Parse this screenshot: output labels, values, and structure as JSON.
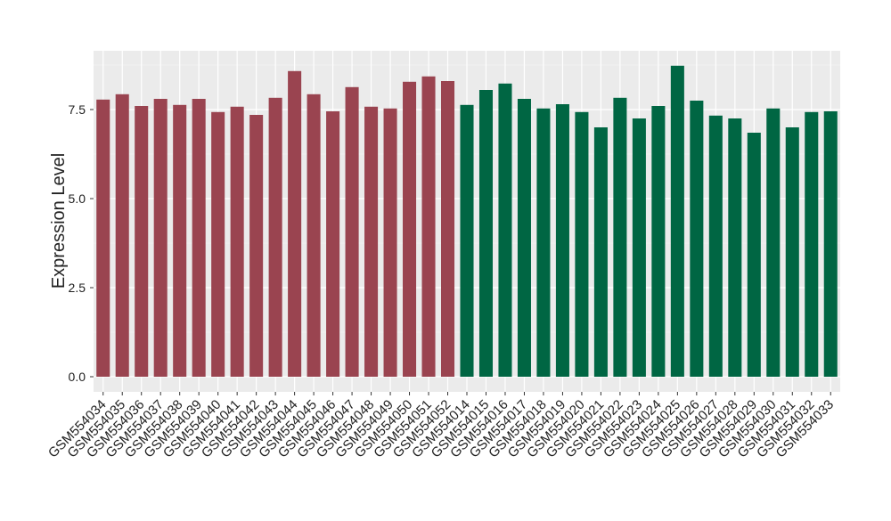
{
  "chart_data": {
    "type": "bar",
    "y_label": "Expression Level",
    "categories": [
      "GSM554034",
      "GSM554035",
      "GSM554036",
      "GSM554037",
      "GSM554038",
      "GSM554039",
      "GSM554040",
      "GSM554041",
      "GSM554042",
      "GSM554043",
      "GSM554044",
      "GSM554045",
      "GSM554046",
      "GSM554047",
      "GSM554048",
      "GSM554049",
      "GSM554050",
      "GSM554051",
      "GSM554052",
      "GSM554014",
      "GSM554015",
      "GSM554016",
      "GSM554017",
      "GSM554018",
      "GSM554019",
      "GSM554020",
      "GSM554021",
      "GSM554022",
      "GSM554023",
      "GSM554024",
      "GSM554025",
      "GSM554026",
      "GSM554027",
      "GSM554028",
      "GSM554029",
      "GSM554030",
      "GSM554031",
      "GSM554032",
      "GSM554033"
    ],
    "values": [
      7.78,
      7.93,
      7.6,
      7.8,
      7.63,
      7.8,
      7.43,
      7.58,
      7.35,
      7.83,
      8.58,
      7.93,
      7.45,
      8.13,
      7.58,
      7.53,
      8.28,
      8.43,
      8.3,
      7.63,
      8.05,
      8.23,
      7.8,
      7.53,
      7.65,
      7.43,
      7.0,
      7.83,
      7.25,
      7.6,
      8.73,
      7.75,
      7.33,
      7.25,
      6.85,
      7.53,
      7.0,
      7.43,
      7.45
    ],
    "colors": [
      "#9a4450",
      "#9a4450",
      "#9a4450",
      "#9a4450",
      "#9a4450",
      "#9a4450",
      "#9a4450",
      "#9a4450",
      "#9a4450",
      "#9a4450",
      "#9a4450",
      "#9a4450",
      "#9a4450",
      "#9a4450",
      "#9a4450",
      "#9a4450",
      "#9a4450",
      "#9a4450",
      "#9a4450",
      "#006643",
      "#006643",
      "#006643",
      "#006643",
      "#006643",
      "#006643",
      "#006643",
      "#006643",
      "#006643",
      "#006643",
      "#006643",
      "#006643",
      "#006643",
      "#006643",
      "#006643",
      "#006643",
      "#006643",
      "#006643",
      "#006643",
      "#006643"
    ],
    "ylim": [
      -0.425,
      9.15
    ],
    "yticks": [
      {
        "value": 0,
        "label": "0.0"
      },
      {
        "value": 2.5,
        "label": "2.5"
      },
      {
        "value": 5,
        "label": "5.0"
      },
      {
        "value": 7.5,
        "label": "7.5"
      }
    ],
    "grid": true
  }
}
